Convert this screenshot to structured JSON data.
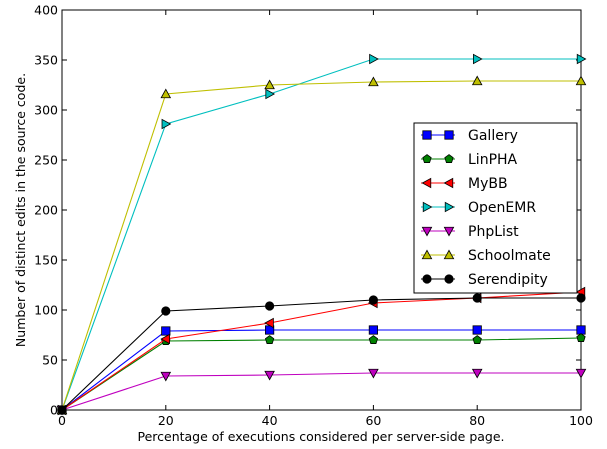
{
  "chart_data": {
    "type": "line",
    "title": "",
    "xlabel": "Percentage of executions considered per server-side page.",
    "ylabel": "Number of distinct edits in the source code.",
    "xlim": [
      0,
      100
    ],
    "ylim": [
      0,
      400
    ],
    "x_ticks": [
      "0",
      "20",
      "40",
      "60",
      "80",
      "100"
    ],
    "y_ticks": [
      "0",
      "50",
      "100",
      "150",
      "200",
      "250",
      "300",
      "350",
      "400"
    ],
    "grid": false,
    "legend_position": "right",
    "x": [
      0,
      20,
      40,
      60,
      80,
      100
    ],
    "series": [
      {
        "name": "Gallery",
        "color": "#0000ff",
        "marker": "square",
        "values": [
          0,
          79,
          80,
          80,
          80,
          80
        ]
      },
      {
        "name": "LinPHA",
        "color": "#008000",
        "marker": "pentagon",
        "values": [
          0,
          69,
          70,
          70,
          70,
          72
        ]
      },
      {
        "name": "MyBB",
        "color": "#ff0000",
        "marker": "triangle-left",
        "values": [
          0,
          71,
          87,
          107,
          112,
          118
        ]
      },
      {
        "name": "OpenEMR",
        "color": "#00bfbf",
        "marker": "triangle-right",
        "values": [
          0,
          286,
          316,
          351,
          351,
          351
        ]
      },
      {
        "name": "PhpList",
        "color": "#bf00bf",
        "marker": "triangle-down",
        "values": [
          0,
          34,
          35,
          37,
          37,
          37
        ]
      },
      {
        "name": "Schoolmate",
        "color": "#bfbf00",
        "marker": "triangle-up",
        "values": [
          0,
          316,
          325,
          328,
          329,
          329
        ]
      },
      {
        "name": "Serendipity",
        "color": "#000000",
        "marker": "circle",
        "values": [
          0,
          99,
          104,
          110,
          112,
          112
        ]
      }
    ]
  }
}
